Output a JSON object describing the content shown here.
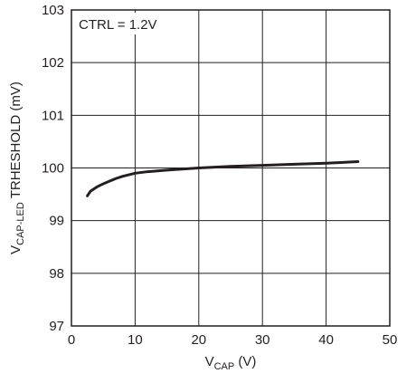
{
  "chart_data": {
    "type": "line",
    "title": "",
    "xlabel": {
      "main": "V",
      "sub": "CAP",
      "unit": " (V)"
    },
    "ylabel": {
      "main": "V",
      "sub": "CAP-LED",
      "rest": " TRHESHOLD (mV)"
    },
    "xlim": [
      0,
      50
    ],
    "ylim": [
      97,
      103
    ],
    "xticks": [
      0,
      10,
      20,
      30,
      40,
      50
    ],
    "yticks": [
      97,
      98,
      99,
      100,
      101,
      102,
      103
    ],
    "xtick_labels": [
      "0",
      "10",
      "20",
      "30",
      "40",
      "50"
    ],
    "ytick_labels": [
      "97",
      "98",
      "99",
      "100",
      "101",
      "102",
      "103"
    ],
    "grid": true,
    "annotation": "CTRL = 1.2V",
    "series": [
      {
        "x": [
          2.5,
          3.0,
          4.0,
          5.0,
          6.0,
          7.0,
          8.0,
          10.0,
          12.0,
          15.0,
          20.0,
          25.0,
          30.0,
          35.0,
          40.0,
          45.0
        ],
        "y": [
          99.47,
          99.56,
          99.64,
          99.7,
          99.75,
          99.8,
          99.84,
          99.9,
          99.93,
          99.96,
          100.0,
          100.03,
          100.05,
          100.07,
          100.09,
          100.12
        ]
      }
    ],
    "colors": {
      "line": "#231f20",
      "grid": "#231f20",
      "frame": "#231f20"
    }
  }
}
